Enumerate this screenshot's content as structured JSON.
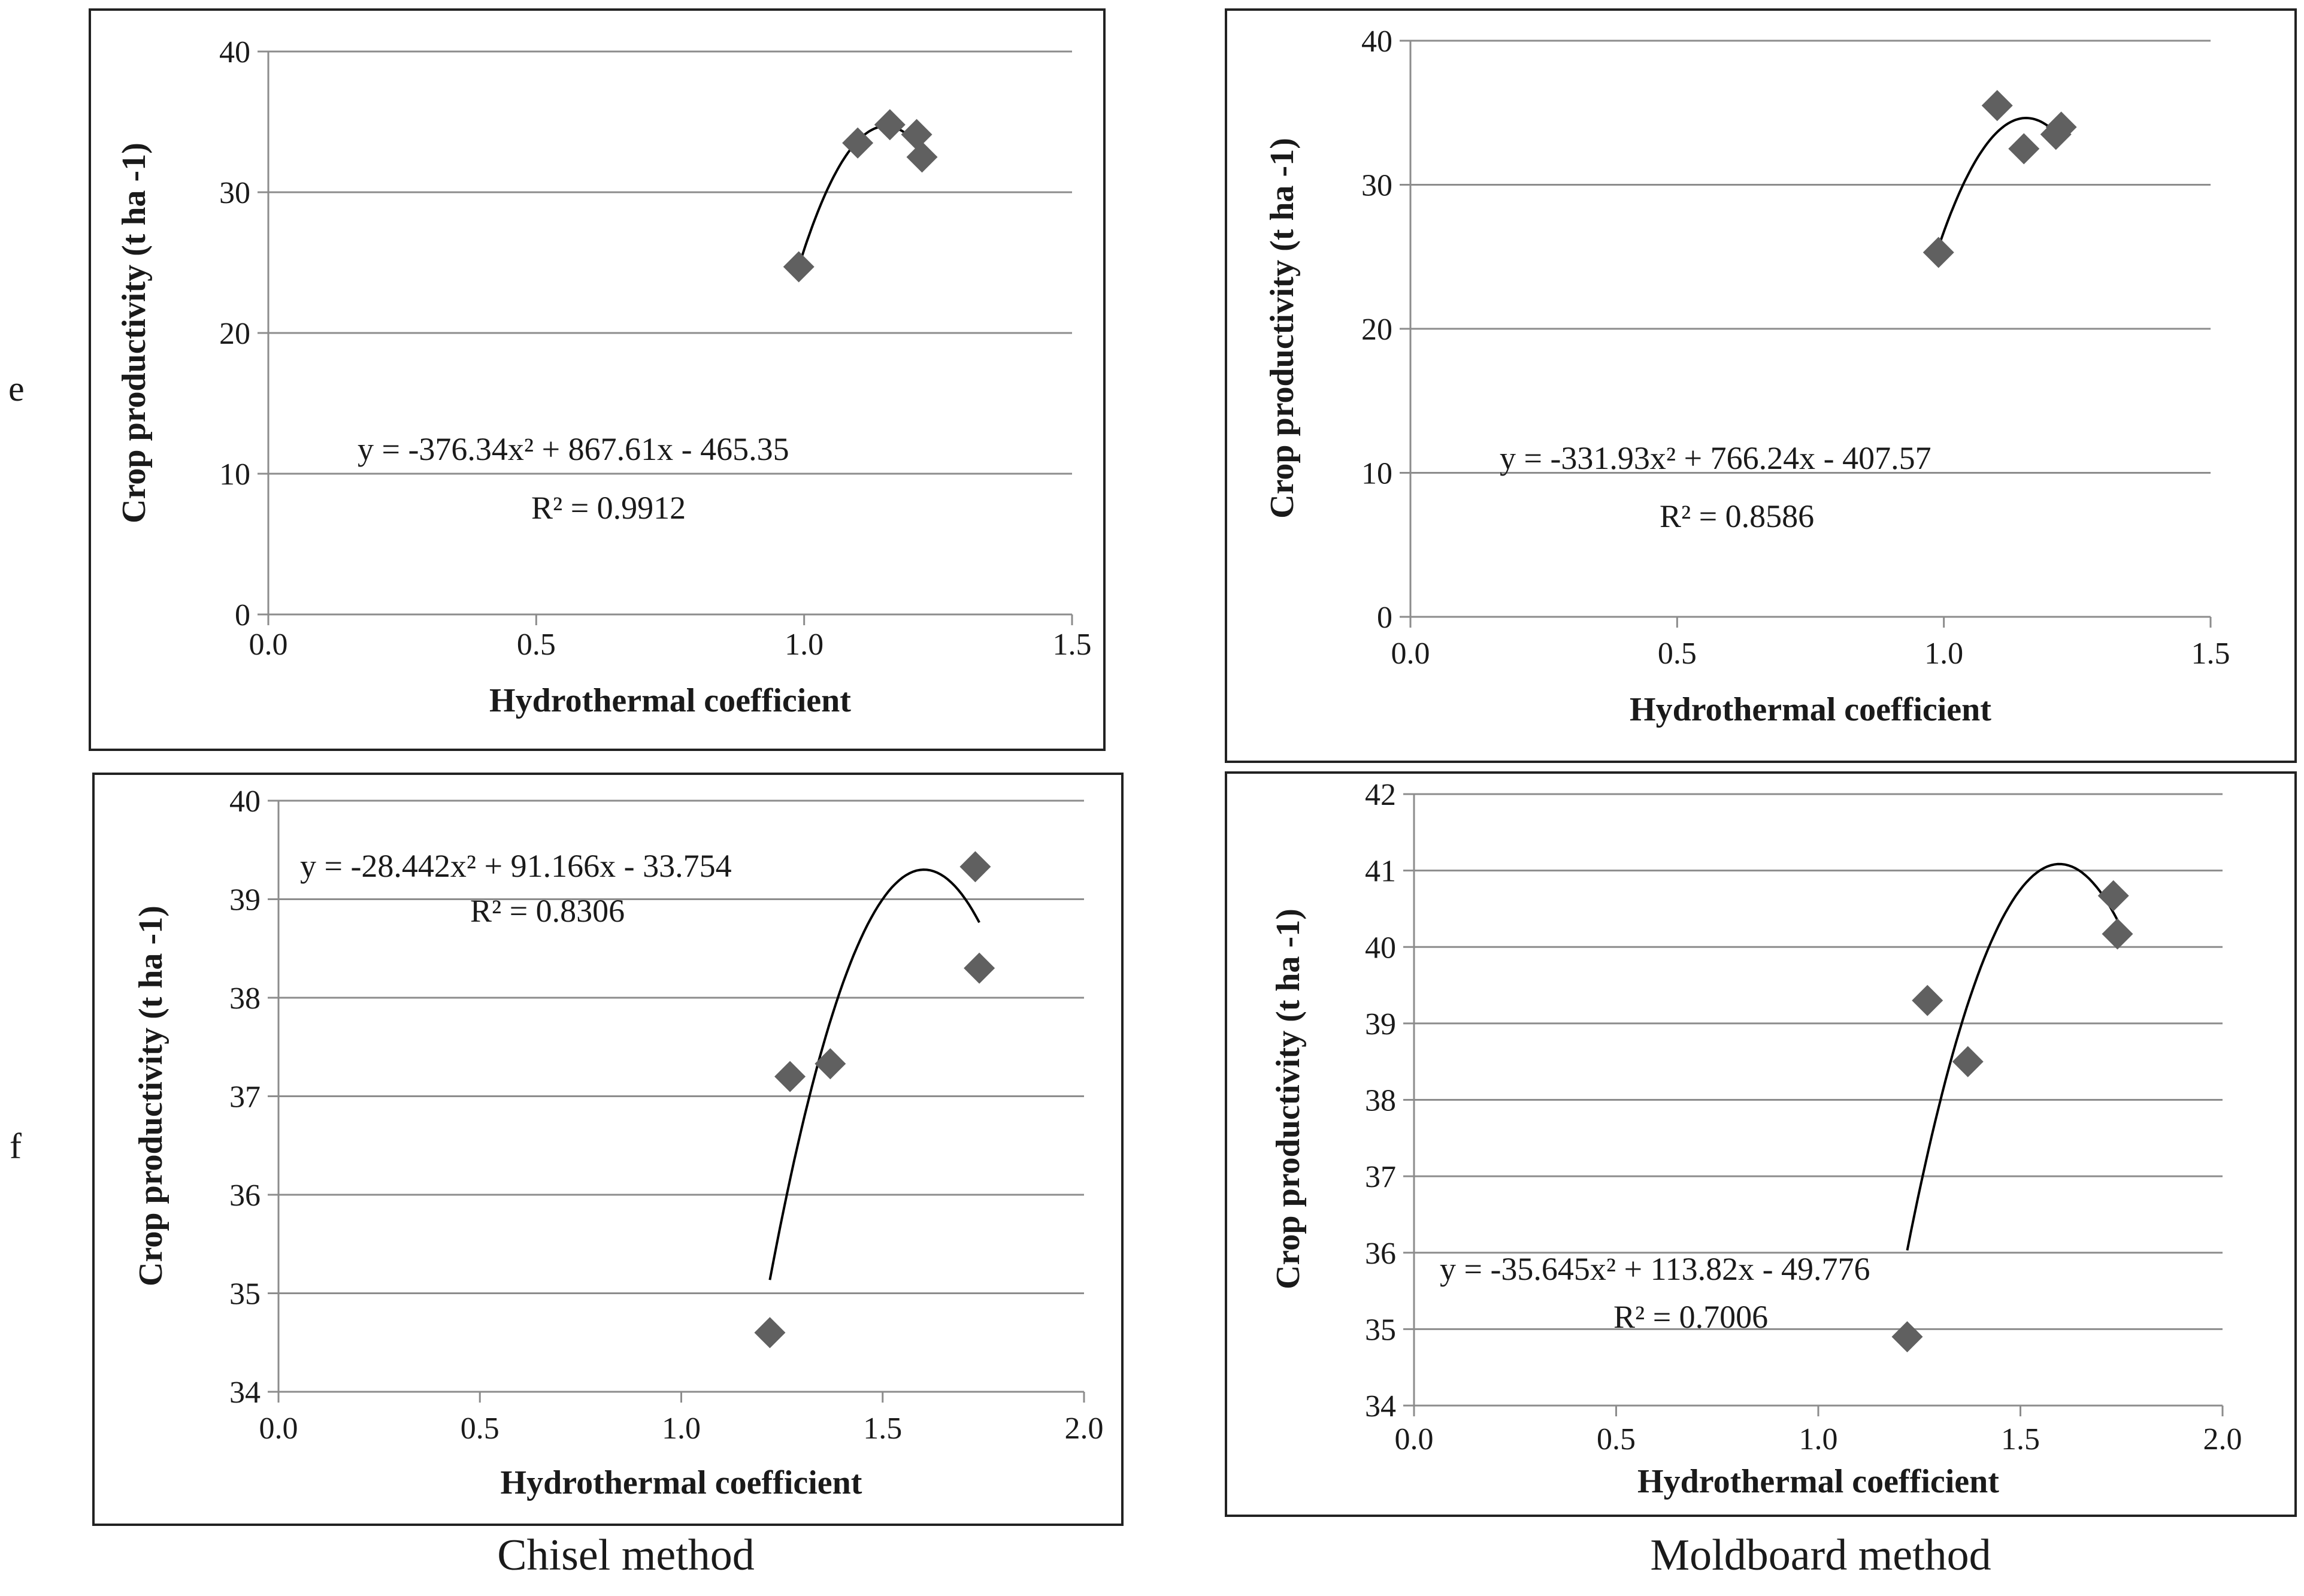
{
  "row_labels": [
    "e",
    "f"
  ],
  "column_captions": [
    "Chisel method",
    "Moldboard method"
  ],
  "colors": {
    "marker": "#606060",
    "grid": "#8c8c8c",
    "curve": "#000000",
    "text": "#1a1a1a"
  },
  "chart_data": [
    {
      "type": "scatter",
      "title": "",
      "xlabel": "Hydrothermal coefficient",
      "ylabel": "Crop productivity  (t ha -1)",
      "xlim": [
        0,
        1.5
      ],
      "ylim": [
        0,
        40
      ],
      "xticks": [
        0,
        0.5,
        1.0,
        1.5
      ],
      "xtick_labels": [
        "0.0",
        "0.5",
        "1.0",
        "1.5"
      ],
      "yticks": [
        0,
        10,
        20,
        30,
        40
      ],
      "ytick_labels": [
        "0",
        "10",
        "20",
        "30",
        "40"
      ],
      "grid": true,
      "points": [
        {
          "x": 0.99,
          "y": 24.7
        },
        {
          "x": 1.1,
          "y": 33.5
        },
        {
          "x": 1.16,
          "y": 34.8
        },
        {
          "x": 1.21,
          "y": 34.1
        },
        {
          "x": 1.22,
          "y": 32.5
        }
      ],
      "trendline": {
        "type": "polynomial",
        "a": -376.34,
        "b": 867.61,
        "c": -465.35,
        "x_range": [
          0.99,
          1.22
        ]
      },
      "equation": "y = -376.34x² + 867.61x - 465.35",
      "r2": "R² = 0.9912"
    },
    {
      "type": "scatter",
      "title": "",
      "xlabel": "Hydrothermal coefficient",
      "ylabel": "Crop productivity  (t ha -1)",
      "xlim": [
        0,
        1.5
      ],
      "ylim": [
        0,
        40
      ],
      "xticks": [
        0,
        0.5,
        1.0,
        1.5
      ],
      "xtick_labels": [
        "0.0",
        "0.5",
        "1.0",
        "1.5"
      ],
      "yticks": [
        0,
        10,
        20,
        30,
        40
      ],
      "ytick_labels": [
        "0",
        "10",
        "20",
        "30",
        "40"
      ],
      "grid": true,
      "points": [
        {
          "x": 0.99,
          "y": 25.3
        },
        {
          "x": 1.1,
          "y": 35.5
        },
        {
          "x": 1.15,
          "y": 32.5
        },
        {
          "x": 1.21,
          "y": 33.5
        },
        {
          "x": 1.22,
          "y": 34.0
        }
      ],
      "trendline": {
        "type": "polynomial",
        "a": -331.93,
        "b": 766.24,
        "c": -407.57,
        "x_range": [
          0.99,
          1.22
        ]
      },
      "equation": "y = -331.93x² + 766.24x - 407.57",
      "r2": "R² = 0.8586"
    },
    {
      "type": "scatter",
      "title": "",
      "xlabel": "Hydrothermal coefficient",
      "ylabel": "Crop productivity  (t ha -1)",
      "xlim": [
        0,
        2.0
      ],
      "ylim": [
        34,
        40
      ],
      "xticks": [
        0,
        0.5,
        1.0,
        1.5,
        2.0
      ],
      "xtick_labels": [
        "0.0",
        "0.5",
        "1.0",
        "1.5",
        "2.0"
      ],
      "yticks": [
        34,
        35,
        36,
        37,
        38,
        39,
        40
      ],
      "ytick_labels": [
        "34",
        "35",
        "36",
        "37",
        "38",
        "39",
        "40"
      ],
      "grid": true,
      "points": [
        {
          "x": 1.22,
          "y": 34.6
        },
        {
          "x": 1.27,
          "y": 37.2
        },
        {
          "x": 1.37,
          "y": 37.33
        },
        {
          "x": 1.73,
          "y": 39.33
        },
        {
          "x": 1.74,
          "y": 38.3
        }
      ],
      "trendline": {
        "type": "polynomial",
        "a": -28.442,
        "b": 91.166,
        "c": -33.754,
        "x_range": [
          1.22,
          1.74
        ]
      },
      "equation": "y = -28.442x² + 91.166x - 33.754",
      "r2": "R² = 0.8306"
    },
    {
      "type": "scatter",
      "title": "",
      "xlabel": "Hydrothermal coefficient",
      "ylabel": "Crop productivity  (t ha -1)",
      "xlim": [
        0,
        2.0
      ],
      "ylim": [
        34,
        42
      ],
      "xticks": [
        0,
        0.5,
        1.0,
        1.5,
        2.0
      ],
      "xtick_labels": [
        "0.0",
        "0.5",
        "1.0",
        "1.5",
        "2.0"
      ],
      "yticks": [
        34,
        35,
        36,
        37,
        38,
        39,
        40,
        41,
        42
      ],
      "ytick_labels": [
        "34",
        "35",
        "36",
        "37",
        "38",
        "39",
        "40",
        "41",
        "42"
      ],
      "grid": true,
      "points": [
        {
          "x": 1.22,
          "y": 34.9
        },
        {
          "x": 1.27,
          "y": 39.3
        },
        {
          "x": 1.37,
          "y": 38.5
        },
        {
          "x": 1.73,
          "y": 40.67
        },
        {
          "x": 1.74,
          "y": 40.17
        }
      ],
      "trendline": {
        "type": "polynomial",
        "a": -35.645,
        "b": 113.82,
        "c": -49.776,
        "x_range": [
          1.22,
          1.74
        ]
      },
      "equation": "y = -35.645x² + 113.82x - 49.776",
      "r2": "R² = 0.7006"
    }
  ]
}
